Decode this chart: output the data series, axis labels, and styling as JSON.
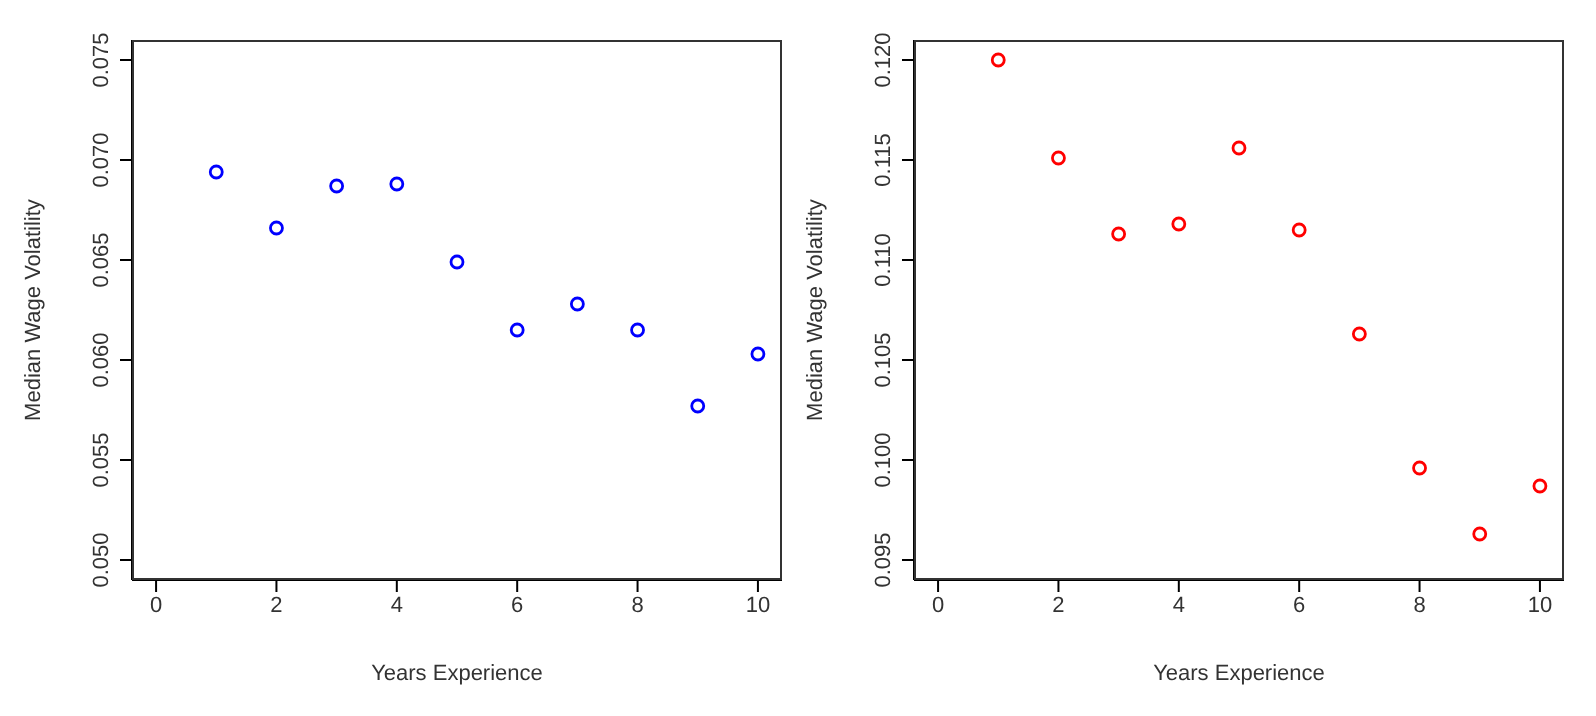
{
  "chart_data": [
    {
      "type": "scatter",
      "xlabel": "Years Experience",
      "ylabel": "Median Wage Volatility",
      "x": [
        1,
        2,
        3,
        4,
        5,
        6,
        7,
        8,
        9,
        10
      ],
      "series": [
        {
          "color": "#0000ff",
          "values": [
            0.0694,
            0.0666,
            0.0687,
            0.0688,
            0.0649,
            0.0615,
            0.0628,
            0.0615,
            0.0577,
            0.0603
          ]
        }
      ],
      "xlim": [
        -0.4,
        10.4
      ],
      "xticks": [
        0,
        2,
        4,
        6,
        8,
        10
      ],
      "ylim": [
        0.049,
        0.076
      ],
      "yticks": [
        {
          "value": 0.05,
          "label": "0.050"
        },
        {
          "value": 0.055,
          "label": "0.055"
        },
        {
          "value": 0.06,
          "label": "0.060"
        },
        {
          "value": 0.065,
          "label": "0.065"
        },
        {
          "value": 0.07,
          "label": "0.070"
        },
        {
          "value": 0.075,
          "label": "0.075"
        }
      ],
      "grid": false,
      "legend": false,
      "marker": "circle"
    },
    {
      "type": "scatter",
      "xlabel": "Years Experience",
      "ylabel": "Median Wage Volatility",
      "x": [
        1,
        2,
        3,
        4,
        5,
        6,
        7,
        8,
        9,
        10
      ],
      "series": [
        {
          "color": "#ff0000",
          "values": [
            0.12,
            0.1151,
            0.1113,
            0.1118,
            0.1156,
            0.1115,
            0.1063,
            0.0996,
            0.0963,
            0.0987
          ]
        }
      ],
      "xlim": [
        -0.4,
        10.4
      ],
      "xticks": [
        0,
        2,
        4,
        6,
        8,
        10
      ],
      "ylim": [
        0.094,
        0.121
      ],
      "yticks": [
        {
          "value": 0.095,
          "label": "0.095"
        },
        {
          "value": 0.1,
          "label": "0.100"
        },
        {
          "value": 0.105,
          "label": "0.105"
        },
        {
          "value": 0.11,
          "label": "0.110"
        },
        {
          "value": 0.115,
          "label": "0.115"
        },
        {
          "value": 0.12,
          "label": "0.120"
        }
      ],
      "grid": false,
      "legend": false,
      "marker": "circle"
    }
  ]
}
